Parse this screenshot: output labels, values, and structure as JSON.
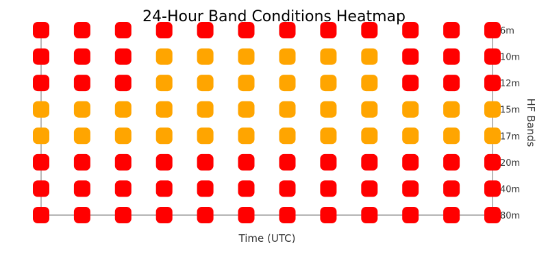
{
  "chart_data": {
    "type": "heatmap",
    "title": "24-Hour Band Conditions Heatmap",
    "xlabel": "Time (UTC)",
    "ylabel": "HF Bands",
    "x_tick_labels": [],
    "bands": [
      "6m",
      "10m",
      "12m",
      "15m",
      "17m",
      "20m",
      "40m",
      "80m"
    ],
    "columns": 12,
    "condition_colors": {
      "poor": "#ff0000",
      "fair": "#ffa500"
    },
    "grid": false,
    "rows": [
      {
        "band": "6m",
        "values": [
          "poor",
          "poor",
          "poor",
          "poor",
          "poor",
          "poor",
          "poor",
          "poor",
          "poor",
          "poor",
          "poor",
          "poor"
        ]
      },
      {
        "band": "10m",
        "values": [
          "poor",
          "poor",
          "poor",
          "fair",
          "fair",
          "fair",
          "fair",
          "fair",
          "fair",
          "poor",
          "poor",
          "poor"
        ]
      },
      {
        "band": "12m",
        "values": [
          "poor",
          "poor",
          "poor",
          "fair",
          "fair",
          "fair",
          "fair",
          "fair",
          "fair",
          "poor",
          "poor",
          "poor"
        ]
      },
      {
        "band": "15m",
        "values": [
          "fair",
          "fair",
          "fair",
          "fair",
          "fair",
          "fair",
          "fair",
          "fair",
          "fair",
          "fair",
          "fair",
          "fair"
        ]
      },
      {
        "band": "17m",
        "values": [
          "fair",
          "fair",
          "fair",
          "fair",
          "fair",
          "fair",
          "fair",
          "fair",
          "fair",
          "fair",
          "fair",
          "fair"
        ]
      },
      {
        "band": "20m",
        "values": [
          "poor",
          "poor",
          "poor",
          "poor",
          "poor",
          "poor",
          "poor",
          "poor",
          "poor",
          "poor",
          "poor",
          "poor"
        ]
      },
      {
        "band": "40m",
        "values": [
          "poor",
          "poor",
          "poor",
          "poor",
          "poor",
          "poor",
          "poor",
          "poor",
          "poor",
          "poor",
          "poor",
          "poor"
        ]
      },
      {
        "band": "80m",
        "values": [
          "poor",
          "poor",
          "poor",
          "poor",
          "poor",
          "poor",
          "poor",
          "poor",
          "poor",
          "poor",
          "poor",
          "poor"
        ]
      }
    ]
  }
}
